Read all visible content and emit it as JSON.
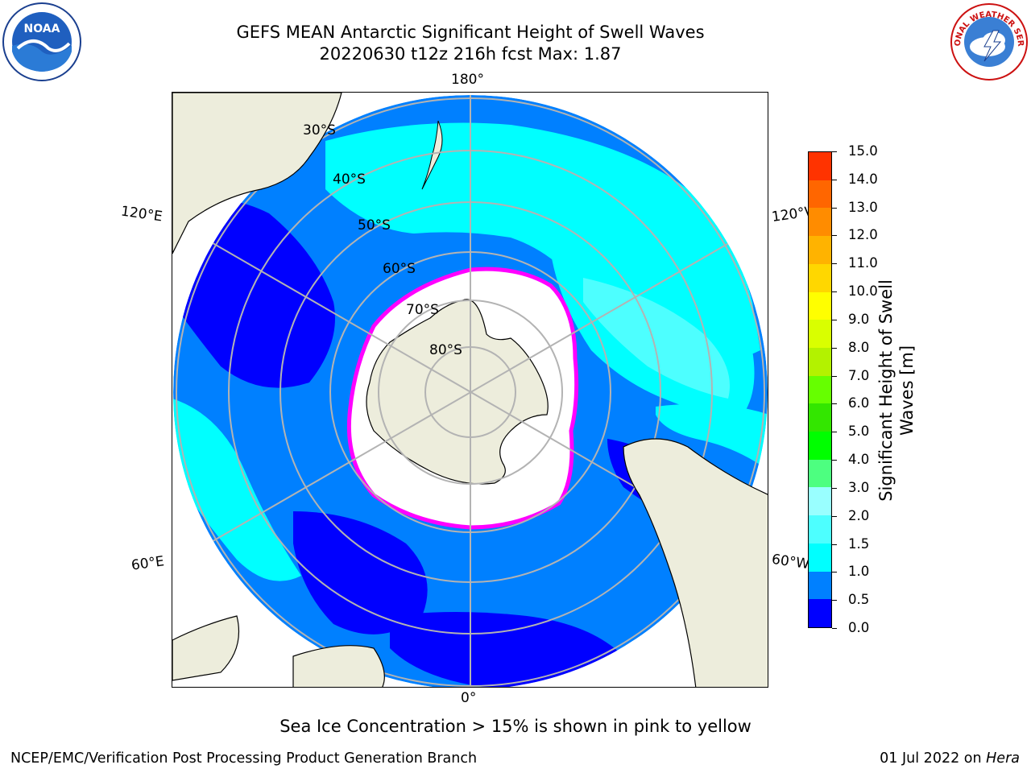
{
  "title": {
    "line1": "GEFS MEAN Antarctic Significant Height of Swell Waves",
    "line2": "20220630 t12z 216h fcst   Max: 1.87"
  },
  "logos": {
    "left": {
      "name": "noaa-logo",
      "text": "NOAA"
    },
    "right": {
      "name": "nws-logo",
      "text": "NATIONAL WEATHER SERVICE"
    }
  },
  "map": {
    "projection": "south-polar-stereographic",
    "longitude_labels": {
      "top": "180°",
      "bottom": "0°",
      "upper_left": "120°E",
      "upper_right": "120°W",
      "lower_left": "60°E",
      "lower_right": "60°W"
    },
    "latitude_labels": [
      "30°S",
      "40°S",
      "50°S",
      "60°S",
      "70°S",
      "80°S"
    ],
    "colors": {
      "ocean_low": "#0000ff",
      "ocean_mid": "#0080ff",
      "ocean_high": "#00ffff",
      "ocean_higher": "#4dffff",
      "land": "#ededdc",
      "sea_ice": "#ffffff",
      "ice_edge": "#ff00ff",
      "grid": "#b3b3b3"
    }
  },
  "colorbar": {
    "title": [
      "Significant Height of Swell",
      "Waves [m]"
    ],
    "ticks": [
      "0.0",
      "0.5",
      "1.0",
      "1.5",
      "2.0",
      "3.0",
      "4.0",
      "5.0",
      "6.0",
      "7.0",
      "8.0",
      "9.0",
      "10.0",
      "11.0",
      "12.0",
      "13.0",
      "14.0",
      "15.0"
    ],
    "colors": [
      "#0000ff",
      "#0080ff",
      "#00ffff",
      "#4dffff",
      "#99ffff",
      "#4dff80",
      "#00ff00",
      "#33e600",
      "#66ff00",
      "#b3f200",
      "#d9ff00",
      "#ffff00",
      "#ffd700",
      "#ffb300",
      "#ff8c00",
      "#ff6600",
      "#ff3300",
      "#ff0000"
    ]
  },
  "note": "Sea Ice Concentration > 15% is shown in pink to yellow",
  "footer": {
    "left": "NCEP/EMC/Verification Post Processing Product Generation Branch",
    "right_date": "01 Jul 2022 on ",
    "right_host": "Hera"
  }
}
